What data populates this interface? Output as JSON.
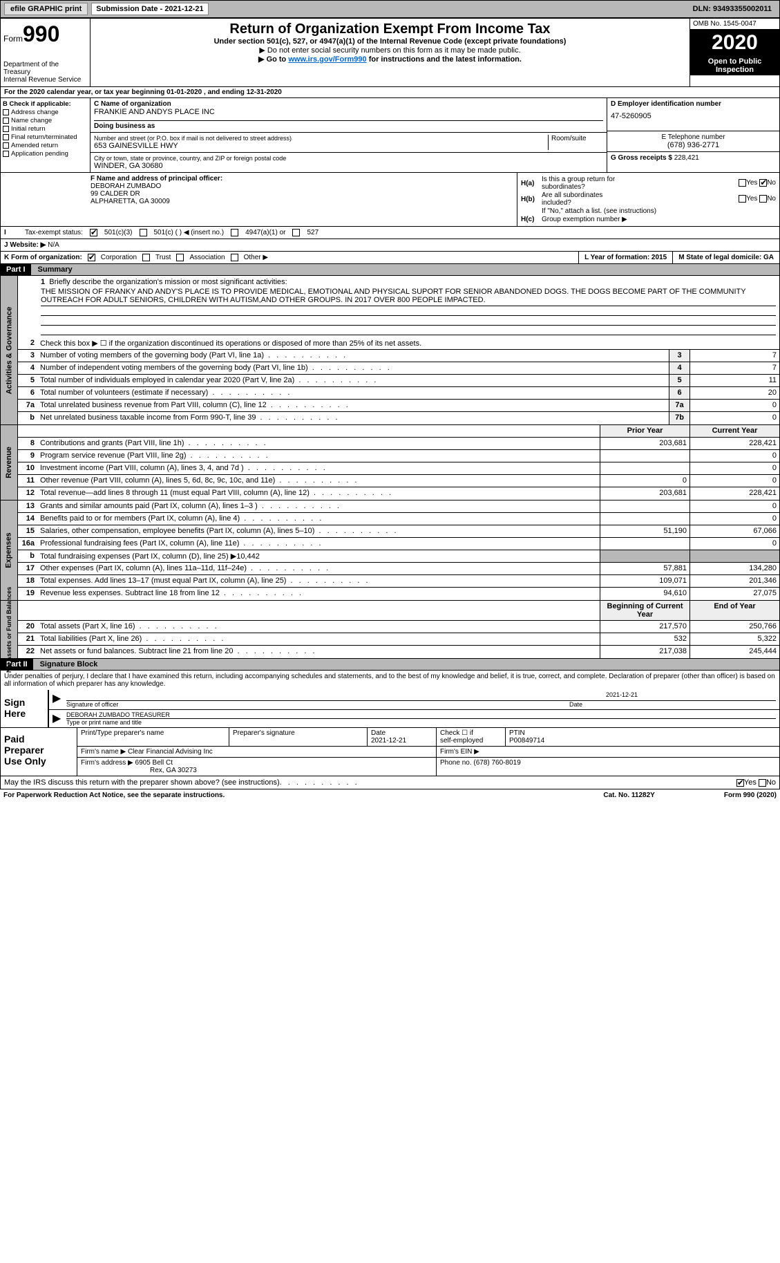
{
  "topBar": {
    "efile": "efile GRAPHIC print",
    "subLabel": "Submission Date - 2021-12-21",
    "dln": "DLN: 93493355002011"
  },
  "header": {
    "formLabel": "Form",
    "formNum": "990",
    "dept": "Department of the Treasury\nInternal Revenue Service",
    "title": "Return of Organization Exempt From Income Tax",
    "sub": "Under section 501(c), 527, or 4947(a)(1) of the Internal Revenue Code (except private foundations)",
    "noSSN": "▶ Do not enter social security numbers on this form as it may be made public.",
    "goto": "▶ Go to ",
    "gotoLink": "www.irs.gov/Form990",
    "gotoRest": " for instructions and the latest information.",
    "omb": "OMB No. 1545-0047",
    "year": "2020",
    "openPub": "Open to Public\nInspection"
  },
  "periodLine": "For the 2020 calendar year, or tax year beginning 01-01-2020    , and ending 12-31-2020",
  "checkApplic": {
    "hdr": "B Check if applicable:",
    "items": [
      "Address change",
      "Name change",
      "Initial return",
      "Final return/terminated",
      "Amended return",
      "Application pending"
    ]
  },
  "nameBox": {
    "lbl": "C Name of organization",
    "val": "FRANKIE AND ANDYS PLACE INC",
    "dba": "Doing business as"
  },
  "addr": {
    "lbl": "Number and street (or P.O. box if mail is not delivered to street address)",
    "val": "653 GAINESVILLE HWY",
    "room": "Room/suite",
    "cityLbl": "City or town, state or province, country, and ZIP or foreign postal code",
    "cityVal": "WINDER, GA  30680"
  },
  "ein": {
    "lbl": "D Employer identification number",
    "val": "47-5260905"
  },
  "tel": {
    "lbl": "E Telephone number",
    "val": "(678) 936-2771"
  },
  "gross": {
    "lbl": "G Gross receipts $ ",
    "val": "228,421"
  },
  "officer": {
    "lbl": "F  Name and address of principal officer:",
    "name": "DEBORAH ZUMBADO",
    "addr1": "99 CALDER DR",
    "addr2": "ALPHARETTA, GA  30009"
  },
  "hBlock": {
    "a": "Is this a group return for\nsubordinates?",
    "b": "Are all subordinates\nincluded?",
    "note": "If \"No,\" attach a list. (see instructions)",
    "c": "Group exemption number ▶"
  },
  "taxStatus": {
    "lbl": "Tax-exempt status:",
    "opts": [
      "501(c)(3)",
      "501(c) (   ) ◀ (insert no.)",
      "4947(a)(1) or",
      "527"
    ]
  },
  "website": {
    "lbl": "J   Website: ▶",
    "val": "N/A"
  },
  "korg": {
    "lbl": "K Form of organization:",
    "opts": [
      "Corporation",
      "Trust",
      "Association",
      "Other ▶"
    ],
    "yr": "L Year of formation: 2015",
    "state": "M State of legal domicile: GA"
  },
  "part1": {
    "hdr": "Part I",
    "title": "Summary",
    "missionLbl": "Briefly describe the organization's mission or most significant activities:",
    "mission": "THE MISSION OF FRANKY AND ANDY'S PLACE IS TO PROVIDE MEDICAL, EMOTIONAL AND PHYSICAL SUPORT FOR SENIOR ABANDONED DOGS. THE DOGS BECOME PART OF THE COMMUNITY OUTREACH FOR ADULT SENIORS, CHILDREN WITH AUTISM,AND OTHER GROUPS. IN 2017 OVER 800 PEOPLE IMPACTED.",
    "line2": "Check this box ▶ ☐  if the organization discontinued its operations or disposed of more than 25% of its net assets."
  },
  "sideLabels": {
    "ag": "Activities & Governance",
    "rev": "Revenue",
    "exp": "Expenses",
    "nab": "Net Assets or\nFund Balances"
  },
  "govRows": [
    {
      "n": "3",
      "d": "Number of voting members of the governing body (Part VI, line 1a)",
      "l": "3",
      "v": "7"
    },
    {
      "n": "4",
      "d": "Number of independent voting members of the governing body (Part VI, line 1b)",
      "l": "4",
      "v": "7"
    },
    {
      "n": "5",
      "d": "Total number of individuals employed in calendar year 2020 (Part V, line 2a)",
      "l": "5",
      "v": "11"
    },
    {
      "n": "6",
      "d": "Total number of volunteers (estimate if necessary)",
      "l": "6",
      "v": "20"
    },
    {
      "n": "7a",
      "d": "Total unrelated business revenue from Part VIII, column (C), line 12",
      "l": "7a",
      "v": "0"
    },
    {
      "n": "b",
      "d": "Net unrelated business taxable income from Form 990-T, line 39",
      "l": "7b",
      "v": "0"
    }
  ],
  "colHdrs": {
    "prior": "Prior Year",
    "current": "Current Year",
    "boc": "Beginning of Current Year",
    "eoy": "End of Year"
  },
  "revRows": [
    {
      "n": "8",
      "d": "Contributions and grants (Part VIII, line 1h)",
      "p": "203,681",
      "c": "228,421"
    },
    {
      "n": "9",
      "d": "Program service revenue (Part VIII, line 2g)",
      "p": "",
      "c": "0"
    },
    {
      "n": "10",
      "d": "Investment income (Part VIII, column (A), lines 3, 4, and 7d )",
      "p": "",
      "c": "0"
    },
    {
      "n": "11",
      "d": "Other revenue (Part VIII, column (A), lines 5, 6d, 8c, 9c, 10c, and 11e)",
      "p": "0",
      "c": "0"
    },
    {
      "n": "12",
      "d": "Total revenue—add lines 8 through 11 (must equal Part VIII, column (A), line 12)",
      "p": "203,681",
      "c": "228,421"
    }
  ],
  "expRows": [
    {
      "n": "13",
      "d": "Grants and similar amounts paid (Part IX, column (A), lines 1–3 )",
      "p": "",
      "c": "0"
    },
    {
      "n": "14",
      "d": "Benefits paid to or for members (Part IX, column (A), line 4)",
      "p": "",
      "c": "0"
    },
    {
      "n": "15",
      "d": "Salaries, other compensation, employee benefits (Part IX, column (A), lines 5–10)",
      "p": "51,190",
      "c": "67,066"
    },
    {
      "n": "16a",
      "d": "Professional fundraising fees (Part IX, column (A), line 11e)",
      "p": "",
      "c": "0"
    },
    {
      "n": "b",
      "d": "Total fundraising expenses (Part IX, column (D), line 25) ▶10,442",
      "shaded": true
    },
    {
      "n": "17",
      "d": "Other expenses (Part IX, column (A), lines 11a–11d, 11f–24e)",
      "p": "57,881",
      "c": "134,280"
    },
    {
      "n": "18",
      "d": "Total expenses. Add lines 13–17 (must equal Part IX, column (A), line 25)",
      "p": "109,071",
      "c": "201,346"
    },
    {
      "n": "19",
      "d": "Revenue less expenses. Subtract line 18 from line 12",
      "p": "94,610",
      "c": "27,075"
    }
  ],
  "nabRows": [
    {
      "n": "20",
      "d": "Total assets (Part X, line 16)",
      "p": "217,570",
      "c": "250,766"
    },
    {
      "n": "21",
      "d": "Total liabilities (Part X, line 26)",
      "p": "532",
      "c": "5,322"
    },
    {
      "n": "22",
      "d": "Net assets or fund balances. Subtract line 21 from line 20",
      "p": "217,038",
      "c": "245,444"
    }
  ],
  "part2": {
    "hdr": "Part II",
    "title": "Signature Block",
    "decl": "Under penalties of perjury, I declare that I have examined this return, including accompanying schedules and statements, and to the best of my knowledge and belief, it is true, correct, and complete. Declaration of preparer (other than officer) is based on all information of which preparer has any knowledge."
  },
  "sign": {
    "lbl": "Sign\nHere",
    "sigOf": "Signature of officer",
    "date": "Date",
    "dateVal": "2021-12-21",
    "typed": "DEBORAH ZUMBADO  TREASURER",
    "typedLbl": "Type or print name and title"
  },
  "prep": {
    "lbl": "Paid\nPreparer\nUse Only",
    "ptLbl": "Print/Type preparer's name",
    "sigLbl": "Preparer's signature",
    "dateLbl": "Date",
    "dateVal": "2021-12-21",
    "checkLbl": "Check ☐ if\nself-employed",
    "ptinLbl": "PTIN",
    "ptin": "P00849714",
    "firmNameLbl": "Firm's name    ▶",
    "firmName": "Clear Financial Advising Inc",
    "firmEinLbl": "Firm's EIN ▶",
    "firmAddrLbl": "Firm's address ▶",
    "firmAddr1": "6905 Bell Ct",
    "firmAddr2": "Rex, GA  30273",
    "phoneLbl": "Phone no. ",
    "phone": "(678) 760-8019"
  },
  "irsDiscuss": "May the IRS discuss this return with the preparer shown above? (see instructions)",
  "footer": {
    "pra": "For Paperwork Reduction Act Notice, see the separate instructions.",
    "cat": "Cat. No. 11282Y",
    "form": "Form 990 (2020)"
  }
}
